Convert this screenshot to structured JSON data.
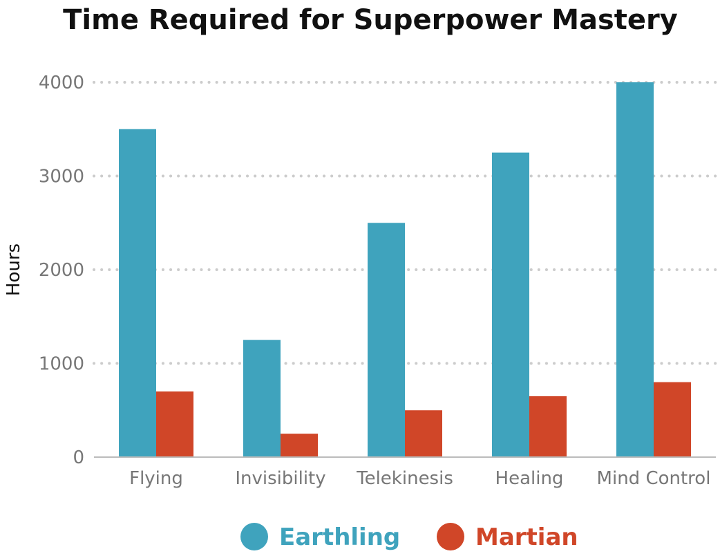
{
  "chart_data": {
    "type": "bar",
    "title": "Time Required for Superpower Mastery",
    "xlabel": "",
    "ylabel": "Hours",
    "categories": [
      "Flying",
      "Invisibility",
      "Telekinesis",
      "Healing",
      "Mind Control"
    ],
    "series": [
      {
        "name": "Earthling",
        "color": "#3fa3bd",
        "values": [
          3500,
          1250,
          2500,
          3250,
          4000
        ]
      },
      {
        "name": "Martian",
        "color": "#d04628",
        "values": [
          700,
          250,
          500,
          650,
          800
        ]
      }
    ],
    "ylim": [
      0,
      4000
    ],
    "yticks": [
      "0",
      "1000",
      "2000",
      "3000",
      "4000"
    ],
    "grid": true,
    "legend_position": "bottom"
  }
}
